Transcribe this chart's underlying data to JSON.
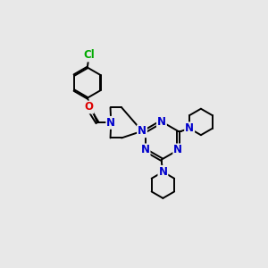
{
  "bg_color": "#e8e8e8",
  "bond_color": "#000000",
  "N_color": "#0000cc",
  "O_color": "#dd0000",
  "Cl_color": "#00aa00",
  "line_width": 1.4,
  "font_size": 8.5,
  "figsize": [
    3.0,
    3.0
  ],
  "dpi": 100,
  "xlim": [
    0,
    10
  ],
  "ylim": [
    0,
    10
  ]
}
